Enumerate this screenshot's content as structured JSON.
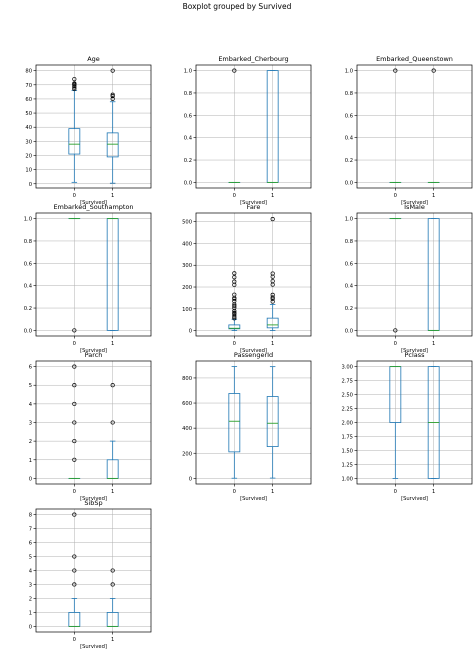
{
  "suptitle": "Boxplot grouped by Survived",
  "chart_data": [
    {
      "type": "box",
      "title": "Age",
      "xlabel": "[Survived]",
      "categories": [
        "0",
        "1"
      ],
      "ylim": [
        -3,
        84
      ],
      "yticks": [
        0,
        10,
        20,
        30,
        40,
        50,
        60,
        70,
        80
      ],
      "tick_decimals": 0,
      "grid": true,
      "boxes": [
        {
          "whislo": 1,
          "q1": 21,
          "med": 28,
          "q3": 39,
          "whishi": 66,
          "fliers": [
            67,
            68,
            69,
            70,
            70.5,
            71,
            74
          ]
        },
        {
          "whislo": 0.4,
          "q1": 19,
          "med": 28,
          "q3": 36,
          "whishi": 58,
          "fliers": [
            60,
            62,
            63,
            80
          ]
        }
      ]
    },
    {
      "type": "box",
      "title": "Embarked_Cherbourg",
      "xlabel": "[Survived]",
      "categories": [
        "0",
        "1"
      ],
      "ylim": [
        -0.05,
        1.05
      ],
      "yticks": [
        0.0,
        0.2,
        0.4,
        0.6,
        0.8,
        1.0
      ],
      "tick_decimals": 1,
      "grid": true,
      "boxes": [
        {
          "whislo": 0,
          "q1": 0,
          "med": 0,
          "q3": 0,
          "whishi": 0,
          "fliers": [
            1
          ]
        },
        {
          "whislo": 0,
          "q1": 0,
          "med": 0,
          "q3": 1,
          "whishi": 1,
          "fliers": []
        }
      ]
    },
    {
      "type": "box",
      "title": "Embarked_Queenstown",
      "xlabel": "[Survived]",
      "categories": [
        "0",
        "1"
      ],
      "ylim": [
        -0.05,
        1.05
      ],
      "yticks": [
        0.0,
        0.2,
        0.4,
        0.6,
        0.8,
        1.0
      ],
      "tick_decimals": 1,
      "grid": true,
      "boxes": [
        {
          "whislo": 0,
          "q1": 0,
          "med": 0,
          "q3": 0,
          "whishi": 0,
          "fliers": [
            1
          ]
        },
        {
          "whislo": 0,
          "q1": 0,
          "med": 0,
          "q3": 0,
          "whishi": 0,
          "fliers": [
            1
          ]
        }
      ]
    },
    {
      "type": "box",
      "title": "Embarked_Southampton",
      "xlabel": "[Survived]",
      "categories": [
        "0",
        "1"
      ],
      "ylim": [
        -0.05,
        1.05
      ],
      "yticks": [
        0.0,
        0.2,
        0.4,
        0.6,
        0.8,
        1.0
      ],
      "tick_decimals": 1,
      "grid": true,
      "boxes": [
        {
          "whislo": 1,
          "q1": 1,
          "med": 1,
          "q3": 1,
          "whishi": 1,
          "fliers": [
            0
          ]
        },
        {
          "whislo": 0,
          "q1": 0,
          "med": 1,
          "q3": 1,
          "whishi": 1,
          "fliers": []
        }
      ]
    },
    {
      "type": "box",
      "title": "Fare",
      "xlabel": "[Survived]",
      "categories": [
        "0",
        "1"
      ],
      "ylim": [
        -25,
        540
      ],
      "yticks": [
        0,
        100,
        200,
        300,
        400,
        500
      ],
      "tick_decimals": 0,
      "grid": true,
      "boxes": [
        {
          "whislo": 0,
          "q1": 8,
          "med": 10.5,
          "q3": 26,
          "whishi": 52,
          "fliers": [
            56,
            62,
            70,
            78,
            82,
            90,
            105,
            113,
            120,
            135,
            145,
            150,
            165,
            210,
            225,
            245,
            263
          ]
        },
        {
          "whislo": 0,
          "q1": 12.5,
          "med": 26,
          "q3": 57,
          "whishi": 120,
          "fliers": [
            133,
            146,
            152,
            164,
            211,
            227,
            247,
            262,
            512
          ]
        }
      ]
    },
    {
      "type": "box",
      "title": "IsMale",
      "xlabel": "[Survived]",
      "categories": [
        "0",
        "1"
      ],
      "ylim": [
        -0.05,
        1.05
      ],
      "yticks": [
        0.0,
        0.2,
        0.4,
        0.6,
        0.8,
        1.0
      ],
      "tick_decimals": 1,
      "grid": true,
      "boxes": [
        {
          "whislo": 1,
          "q1": 1,
          "med": 1,
          "q3": 1,
          "whishi": 1,
          "fliers": [
            0
          ]
        },
        {
          "whislo": 0,
          "q1": 0,
          "med": 0,
          "q3": 1,
          "whishi": 1,
          "fliers": []
        }
      ]
    },
    {
      "type": "box",
      "title": "Parch",
      "xlabel": "[Survived]",
      "categories": [
        "0",
        "1"
      ],
      "ylim": [
        -0.3,
        6.3
      ],
      "yticks": [
        0,
        1,
        2,
        3,
        4,
        5,
        6
      ],
      "tick_decimals": 0,
      "grid": true,
      "boxes": [
        {
          "whislo": 0,
          "q1": 0,
          "med": 0,
          "q3": 0,
          "whishi": 0,
          "fliers": [
            1,
            2,
            3,
            4,
            5,
            6
          ]
        },
        {
          "whislo": 0,
          "q1": 0,
          "med": 0,
          "q3": 1,
          "whishi": 2,
          "fliers": [
            3,
            5
          ]
        }
      ]
    },
    {
      "type": "box",
      "title": "PassengerId",
      "xlabel": "[Survived]",
      "categories": [
        "0",
        "1"
      ],
      "ylim": [
        -45,
        935
      ],
      "yticks": [
        0,
        200,
        400,
        600,
        800
      ],
      "tick_decimals": 0,
      "grid": true,
      "boxes": [
        {
          "whislo": 1,
          "q1": 211,
          "med": 455,
          "q3": 676,
          "whishi": 891,
          "fliers": []
        },
        {
          "whislo": 2,
          "q1": 253,
          "med": 439,
          "q3": 652,
          "whishi": 890,
          "fliers": []
        }
      ]
    },
    {
      "type": "box",
      "title": "Pclass",
      "xlabel": "[Survived]",
      "categories": [
        "0",
        "1"
      ],
      "ylim": [
        0.9,
        3.1
      ],
      "yticks": [
        1.0,
        1.25,
        1.5,
        1.75,
        2.0,
        2.25,
        2.5,
        2.75,
        3.0
      ],
      "tick_decimals": 2,
      "grid": true,
      "boxes": [
        {
          "whislo": 1,
          "q1": 2,
          "med": 3,
          "q3": 3,
          "whishi": 3,
          "fliers": []
        },
        {
          "whislo": 1,
          "q1": 1,
          "med": 2,
          "q3": 3,
          "whishi": 3,
          "fliers": []
        }
      ]
    },
    {
      "type": "box",
      "title": "SibSp",
      "xlabel": "[Survived]",
      "categories": [
        "0",
        "1"
      ],
      "ylim": [
        -0.4,
        8.4
      ],
      "yticks": [
        0,
        1,
        2,
        3,
        4,
        5,
        6,
        7,
        8
      ],
      "tick_decimals": 0,
      "grid": true,
      "boxes": [
        {
          "whislo": 0,
          "q1": 0,
          "med": 0,
          "q3": 1,
          "whishi": 2,
          "fliers": [
            3,
            4,
            5,
            8
          ]
        },
        {
          "whislo": 0,
          "q1": 0,
          "med": 0,
          "q3": 1,
          "whishi": 2,
          "fliers": [
            3,
            4
          ]
        }
      ]
    }
  ],
  "colors": {
    "box": "#1f77b4",
    "median": "#2ca02c",
    "grid": "#b0b0b0",
    "frame": "#000000",
    "flier": "#000000"
  }
}
